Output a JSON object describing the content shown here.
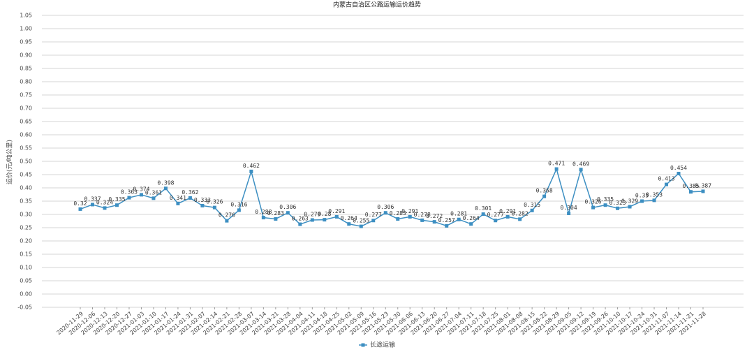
{
  "chart_data": {
    "type": "line",
    "title": "内蒙古自治区公路运输运价趋势",
    "y_label": "运价(元/吨公里)",
    "x": [
      "2020-11-29",
      "2020-12-06",
      "2020-12-13",
      "2020-12-20",
      "2020-12-27",
      "2021-01-03",
      "2021-01-10",
      "2021-01-17",
      "2021-01-24",
      "2021-01-31",
      "2021-02-07",
      "2021-02-14",
      "2021-02-21",
      "2021-02-28",
      "2021-03-07",
      "2021-03-14",
      "2021-03-21",
      "2021-03-28",
      "2021-04-04",
      "2021-04-11",
      "2021-04-18",
      "2021-04-25",
      "2021-05-02",
      "2021-05-09",
      "2021-05-16",
      "2021-05-23",
      "2021-05-30",
      "2021-06-06",
      "2021-06-13",
      "2021-06-20",
      "2021-06-27",
      "2021-07-04",
      "2021-07-11",
      "2021-07-18",
      "2021-07-25",
      "2021-08-01",
      "2021-08-08",
      "2021-08-15",
      "2021-08-22",
      "2021-08-29",
      "2021-09-05",
      "2021-09-12",
      "2021-09-19",
      "2021-09-26",
      "2021-10-10",
      "2021-10-17",
      "2021-10-24",
      "2021-10-31",
      "2021-11-07",
      "2021-11-14",
      "2021-11-21",
      "2021-11-28"
    ],
    "series": [
      {
        "name": "长途运输",
        "color": "#3d8fc2",
        "values": [
          0.32,
          0.337,
          0.324,
          0.335,
          0.363,
          0.374,
          0.361,
          0.398,
          0.341,
          0.362,
          0.333,
          0.326,
          0.276,
          0.316,
          0.462,
          0.288,
          0.283,
          0.306,
          0.263,
          0.279,
          0.28,
          0.291,
          0.264,
          0.255,
          0.277,
          0.306,
          0.283,
          0.291,
          0.278,
          0.272,
          0.257,
          0.281,
          0.264,
          0.301,
          0.277,
          0.291,
          0.282,
          0.315,
          0.368,
          0.471,
          0.304,
          0.469,
          0.326,
          0.335,
          0.323,
          0.329,
          0.35,
          0.353,
          0.413,
          0.454,
          0.385,
          0.387
        ]
      }
    ],
    "ylim": [
      -0.05,
      1.05
    ],
    "yticks": [
      {
        "value": -0.05,
        "label": "-0.05"
      },
      {
        "value": 0,
        "label": "0.00"
      },
      {
        "value": 0.05,
        "label": "0.05"
      },
      {
        "value": 0.1,
        "label": "0.10"
      },
      {
        "value": 0.15,
        "label": "0.15"
      },
      {
        "value": 0.2,
        "label": "0.20"
      },
      {
        "value": 0.25,
        "label": "0.25"
      },
      {
        "value": 0.3,
        "label": "0.30"
      },
      {
        "value": 0.35,
        "label": "0.35"
      },
      {
        "value": 0.4,
        "label": "0.40"
      },
      {
        "value": 0.45,
        "label": "0.45"
      },
      {
        "value": 0.5,
        "label": "0.50"
      },
      {
        "value": 0.55,
        "label": "0.55"
      },
      {
        "value": 0.6,
        "label": "0.60"
      },
      {
        "value": 0.65,
        "label": "0.65"
      },
      {
        "value": 0.7,
        "label": "0.70"
      },
      {
        "value": 0.75,
        "label": "0.75"
      },
      {
        "value": 0.8,
        "label": "0.80"
      },
      {
        "value": 0.85,
        "label": "0.85"
      },
      {
        "value": 0.9,
        "label": "0.90"
      },
      {
        "value": 0.95,
        "label": "0.95"
      },
      {
        "value": 1,
        "label": "1.00"
      },
      {
        "value": 1.05,
        "label": "1.05"
      }
    ],
    "grid": true,
    "legend": "bottom"
  }
}
